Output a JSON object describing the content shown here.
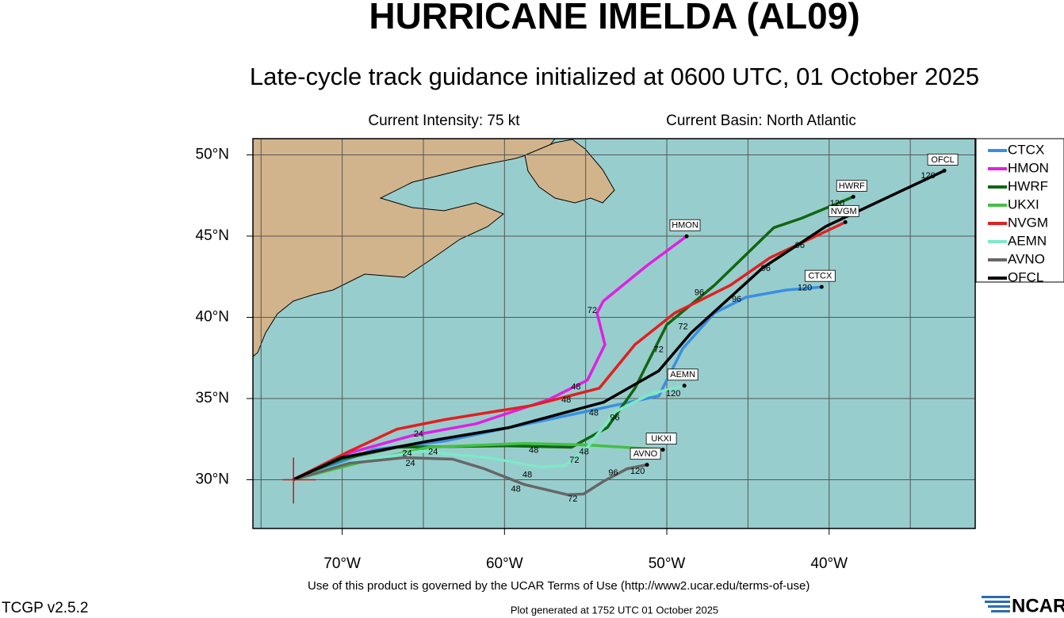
{
  "chart_data": {
    "type": "line",
    "title": "HURRICANE IMELDA (AL09)",
    "subtitle": "Late-cycle track guidance initialized at 0600 UTC, 01 October 2025",
    "intensity": "Current Intensity: 75 kt",
    "basin": "Current Basin: North Atlantic",
    "terms": "Use of this product is governed by the UCAR Terms of Use (http://www2.ucar.edu/terms-of-use)",
    "generated": "Plot generated at 1752 UTC   01 October 2025",
    "version": "TCGP v2.5.2",
    "logo": "NCAR",
    "xlim": [
      -75.5,
      -31
    ],
    "ylim": [
      27,
      51
    ],
    "xticks": [
      {
        "value": -70,
        "label": "70°W"
      },
      {
        "value": -60,
        "label": "60°W"
      },
      {
        "value": -50,
        "label": "50°W"
      },
      {
        "value": -40,
        "label": "40°W"
      }
    ],
    "xgrid_extra": [
      -75,
      -65,
      -55,
      -45,
      -35
    ],
    "yticks": [
      {
        "value": 30,
        "label": "30°N"
      },
      {
        "value": 35,
        "label": "35°N"
      },
      {
        "value": 40,
        "label": "40°N"
      },
      {
        "value": 45,
        "label": "45°N"
      },
      {
        "value": 50,
        "label": "50°N"
      }
    ],
    "grid": true,
    "current_position": {
      "x": -73,
      "y": 30
    },
    "series": [
      {
        "name": "CTCX",
        "color": "#3a8fe0",
        "x": [
          -73.03,
          -68.09,
          -63.69,
          -57.33,
          -53.91,
          -50.49,
          -49.02,
          -47.07,
          -45.11,
          -42.67,
          -40.46
        ],
        "values": [
          30,
          31.85,
          32.38,
          33.7,
          34.43,
          35.16,
          38.08,
          40.27,
          41.24,
          41.68,
          41.87
        ]
      },
      {
        "name": "HMON",
        "color": "#e020e0",
        "x": [
          -73.03,
          -69.56,
          -65.65,
          -61.74,
          -57.33,
          -54.89,
          -53.81,
          -54.3,
          -53.91,
          -51.22,
          -48.78
        ],
        "values": [
          30,
          31.65,
          32.73,
          33.45,
          34.91,
          36.13,
          38.32,
          40.27,
          41.0,
          43.19,
          44.99
        ]
      },
      {
        "name": "HWRF",
        "color": "#116611",
        "x": [
          -73.03,
          -70.05,
          -66.63,
          -59.78,
          -55.87,
          -53.67,
          -51.96,
          -50.0,
          -47.07,
          -43.4,
          -41.69,
          -38.51
        ],
        "values": [
          30,
          31.27,
          32.0,
          32.09,
          32.0,
          33.21,
          35.64,
          39.54,
          41.97,
          45.52,
          46.1,
          47.42
        ]
      },
      {
        "name": "UKXI",
        "color": "#44c044",
        "x": [
          -73.03,
          -69.07,
          -64.67,
          -58.8,
          -54.89,
          -50.24
        ],
        "values": [
          30,
          31.02,
          32.0,
          32.24,
          32.14,
          31.85
        ]
      },
      {
        "name": "NVGM",
        "color": "#e02020",
        "x": [
          -73.03,
          -69.56,
          -66.63,
          -63.69,
          -58.31,
          -54.16,
          -51.96,
          -49.51,
          -46.09,
          -43.64,
          -39.0
        ],
        "values": [
          30,
          31.75,
          33.11,
          33.7,
          34.57,
          35.64,
          38.32,
          40.27,
          41.97,
          43.67,
          45.86
        ]
      },
      {
        "name": "AEMN",
        "color": "#7fe8c8",
        "x": [
          -73.03,
          -69.56,
          -65.16,
          -61.0,
          -57.82,
          -56.26,
          -54.89,
          -53.18,
          -50.98,
          -48.92
        ],
        "values": [
          30,
          31.07,
          31.75,
          31.36,
          30.78,
          30.88,
          32.0,
          34.18,
          35.3,
          35.79
        ]
      },
      {
        "name": "AVNO",
        "color": "#666666",
        "x": [
          -73.03,
          -69.56,
          -66.14,
          -63.2,
          -61.25,
          -58.8,
          -56.11,
          -55.13,
          -53.91,
          -52.44,
          -51.22
        ],
        "values": [
          30,
          31.02,
          31.36,
          31.27,
          30.68,
          29.71,
          29.08,
          29.12,
          29.9,
          30.68,
          30.92
        ]
      },
      {
        "name": "OFCL",
        "color": "#000000",
        "x": [
          -73.03,
          -70.05,
          -64.67,
          -59.78,
          -53.9,
          -50.5,
          -48.5,
          -44.1,
          -40.2,
          -32.9
        ],
        "values": [
          30,
          31.36,
          32.38,
          33.2,
          34.77,
          36.7,
          39.05,
          43.04,
          45.6,
          49.03
        ]
      }
    ],
    "hour_labels": [
      {
        "hour": 120,
        "x": -33.9,
        "y": 48.7
      },
      {
        "hour": 120,
        "x": -39.5,
        "y": 47.0
      },
      {
        "hour": 120,
        "x": -41.5,
        "y": 41.8
      },
      {
        "hour": 120,
        "x": -49.6,
        "y": 35.3
      },
      {
        "hour": 120,
        "x": -51.8,
        "y": 30.5
      },
      {
        "hour": 72,
        "x": -54.6,
        "y": 40.4
      },
      {
        "hour": 48,
        "x": -55.6,
        "y": 35.7
      },
      {
        "hour": 72,
        "x": -50.5,
        "y": 38.0
      },
      {
        "hour": 96,
        "x": -48.0,
        "y": 41.5
      },
      {
        "hour": 96,
        "x": -45.7,
        "y": 41.1
      },
      {
        "hour": 48,
        "x": -56.2,
        "y": 34.9
      },
      {
        "hour": 72,
        "x": -49.0,
        "y": 39.4
      },
      {
        "hour": 48,
        "x": -54.5,
        "y": 34.1
      },
      {
        "hour": 96,
        "x": -53.2,
        "y": 33.8
      },
      {
        "hour": 48,
        "x": -58.2,
        "y": 31.8
      },
      {
        "hour": 72,
        "x": -55.7,
        "y": 31.2
      },
      {
        "hour": 48,
        "x": -55.1,
        "y": 31.7
      },
      {
        "hour": 48,
        "x": -58.6,
        "y": 30.3
      },
      {
        "hour": 48,
        "x": -59.3,
        "y": 29.4
      },
      {
        "hour": 72,
        "x": -55.8,
        "y": 28.8
      },
      {
        "hour": 96,
        "x": -53.3,
        "y": 30.4
      },
      {
        "hour": 24,
        "x": -66.0,
        "y": 31.6
      },
      {
        "hour": 24,
        "x": -65.8,
        "y": 31.0
      },
      {
        "hour": 24,
        "x": -64.4,
        "y": 31.7
      },
      {
        "hour": 24,
        "x": -65.3,
        "y": 32.8
      },
      {
        "hour": 96,
        "x": -43.9,
        "y": 43.0
      },
      {
        "hour": 96,
        "x": -41.8,
        "y": 44.4
      }
    ]
  }
}
